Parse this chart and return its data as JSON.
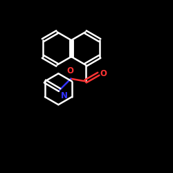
{
  "background_color": "#000000",
  "bond_color": "#ffffff",
  "atom_color_O": "#ff3333",
  "atom_color_N": "#3333ff",
  "line_width": 1.8,
  "font_size": 8.5,
  "xlim": [
    0,
    10
  ],
  "ylim": [
    0,
    10
  ]
}
